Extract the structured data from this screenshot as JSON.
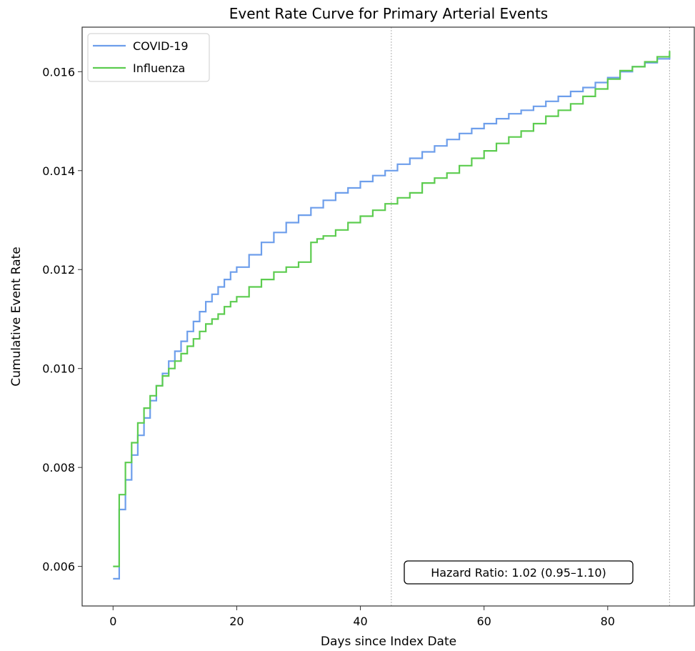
{
  "chart_data": {
    "type": "line",
    "title": "Event Rate Curve for Primary Arterial Events",
    "xlabel": "Days since Index Date",
    "ylabel": "Cumulative Event Rate",
    "xlim": [
      -5,
      94
    ],
    "ylim": [
      0.0052,
      0.0169
    ],
    "x_ticks": [
      0,
      20,
      40,
      60,
      80
    ],
    "x_tick_labels": [
      "0",
      "20",
      "40",
      "60",
      "80"
    ],
    "y_ticks": [
      0.006,
      0.008,
      0.01,
      0.012,
      0.014,
      0.016
    ],
    "y_tick_labels": [
      "0.006",
      "0.008",
      "0.010",
      "0.012",
      "0.014",
      "0.016"
    ],
    "reference_lines_x": [
      45,
      90
    ],
    "grid": false,
    "step": "post",
    "legend": {
      "position": "top-left"
    },
    "annotation": {
      "text": "Hazard Ratio: 1.02 (0.95–1.10)",
      "position": "bottom-right"
    },
    "series": [
      {
        "name": "COVID-19",
        "color": "#6d9eeb",
        "x": [
          0,
          1,
          2,
          3,
          4,
          5,
          6,
          7,
          8,
          9,
          10,
          11,
          12,
          13,
          14,
          15,
          16,
          17,
          18,
          19,
          20,
          22,
          24,
          26,
          28,
          30,
          32,
          34,
          36,
          38,
          40,
          42,
          44,
          46,
          48,
          50,
          52,
          54,
          56,
          58,
          60,
          62,
          64,
          66,
          68,
          70,
          72,
          74,
          76,
          78,
          80,
          82,
          84,
          86,
          88,
          90
        ],
        "y": [
          0.00575,
          0.00715,
          0.00775,
          0.00825,
          0.00865,
          0.009,
          0.00935,
          0.00965,
          0.0099,
          0.01015,
          0.01035,
          0.01055,
          0.01075,
          0.01095,
          0.01115,
          0.01135,
          0.0115,
          0.01165,
          0.0118,
          0.01195,
          0.01205,
          0.0123,
          0.01255,
          0.01275,
          0.01295,
          0.0131,
          0.01325,
          0.0134,
          0.01355,
          0.01365,
          0.01378,
          0.0139,
          0.014,
          0.01413,
          0.01425,
          0.01438,
          0.0145,
          0.01463,
          0.01475,
          0.01485,
          0.01495,
          0.01505,
          0.01515,
          0.01522,
          0.0153,
          0.0154,
          0.0155,
          0.0156,
          0.01568,
          0.01578,
          0.01588,
          0.016,
          0.0161,
          0.01618,
          0.01626,
          0.01634
        ]
      },
      {
        "name": "Influenza",
        "color": "#5ccc4f",
        "x": [
          0,
          1,
          2,
          3,
          4,
          5,
          6,
          7,
          8,
          9,
          10,
          11,
          12,
          13,
          14,
          15,
          16,
          17,
          18,
          19,
          20,
          22,
          24,
          26,
          28,
          30,
          32,
          33,
          34,
          36,
          38,
          40,
          42,
          44,
          46,
          48,
          50,
          52,
          54,
          56,
          58,
          60,
          62,
          64,
          66,
          68,
          70,
          72,
          74,
          76,
          78,
          80,
          82,
          84,
          86,
          88,
          90
        ],
        "y": [
          0.006,
          0.00745,
          0.0081,
          0.0085,
          0.0089,
          0.0092,
          0.00945,
          0.00965,
          0.00985,
          0.01,
          0.01015,
          0.0103,
          0.01045,
          0.0106,
          0.01075,
          0.0109,
          0.011,
          0.0111,
          0.01125,
          0.01135,
          0.01145,
          0.01165,
          0.0118,
          0.01195,
          0.01205,
          0.01215,
          0.01255,
          0.01262,
          0.01268,
          0.0128,
          0.01295,
          0.01308,
          0.0132,
          0.01333,
          0.01345,
          0.01355,
          0.01375,
          0.01385,
          0.01395,
          0.0141,
          0.01425,
          0.0144,
          0.01455,
          0.01468,
          0.0148,
          0.01495,
          0.0151,
          0.01522,
          0.01535,
          0.0155,
          0.01565,
          0.01585,
          0.01602,
          0.0161,
          0.0162,
          0.0163,
          0.01642
        ]
      }
    ]
  }
}
